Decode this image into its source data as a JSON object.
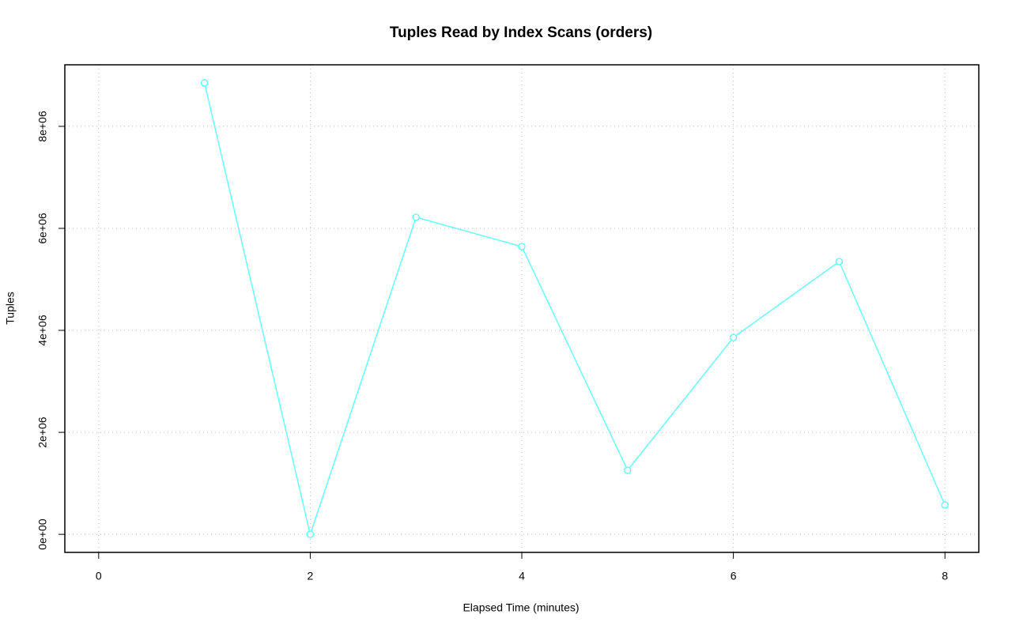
{
  "chart_data": {
    "type": "line",
    "title": "Tuples Read by Index Scans (orders)",
    "x_label": "Elapsed Time (minutes)",
    "y_label": "Tuples",
    "x": [
      1,
      2,
      3,
      4,
      5,
      6,
      7,
      8
    ],
    "series": [
      {
        "name": "orders",
        "color": "#66ffff",
        "values": [
          8853000,
          0,
          6217000,
          5643000,
          1256000,
          3860000,
          5349000,
          574000
        ]
      }
    ],
    "xlim": [
      -0.32,
      8.32
    ],
    "xticks": [
      0,
      2,
      4,
      6,
      8
    ],
    "ylim": [
      -354000,
      9207000
    ],
    "yticks": [
      {
        "value": 0,
        "label": "0e+00"
      },
      {
        "value": 2000000,
        "label": "2e+06"
      },
      {
        "value": 4000000,
        "label": "4e+06"
      },
      {
        "value": 6000000,
        "label": "6e+06"
      },
      {
        "value": 8000000,
        "label": "8e+06"
      }
    ],
    "grid": true
  }
}
